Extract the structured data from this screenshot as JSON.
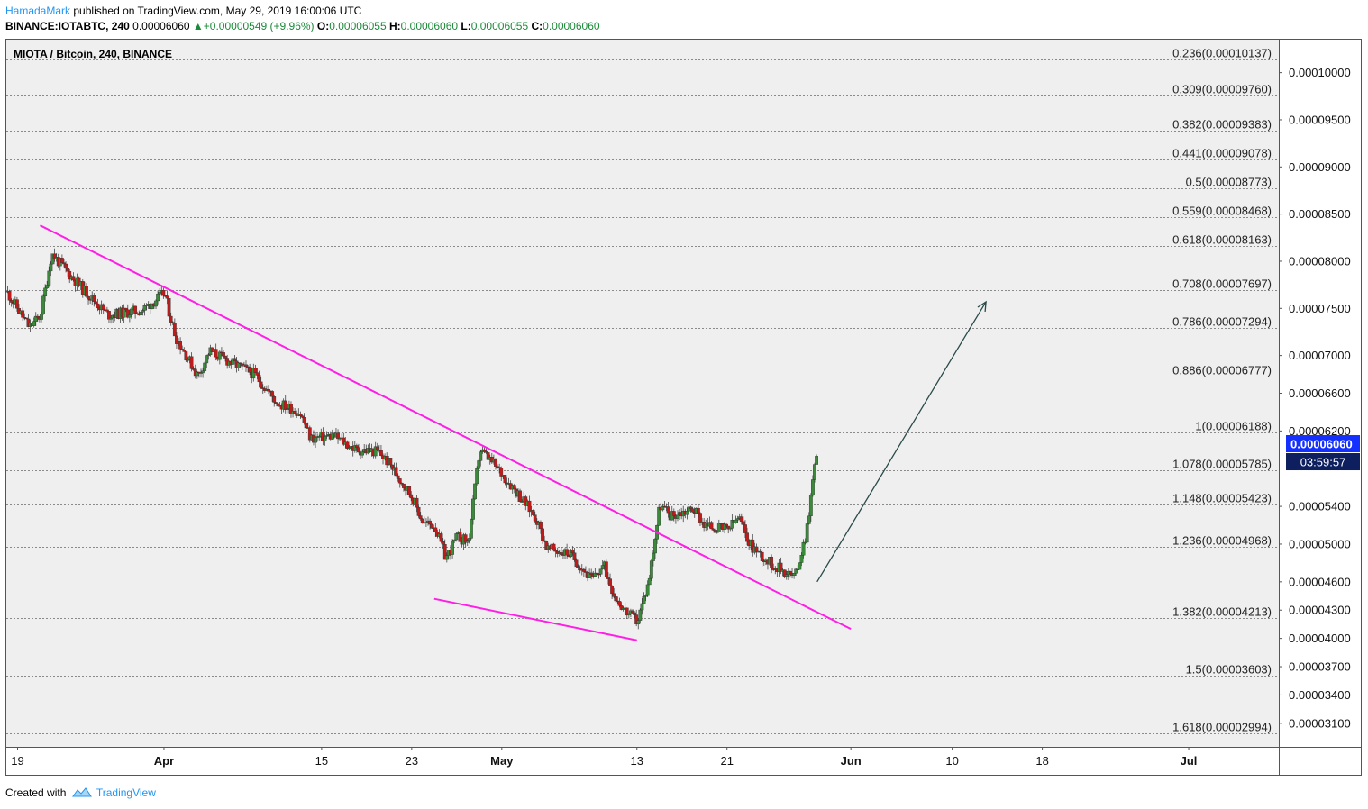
{
  "header": {
    "author": "HamadaMark",
    "published_text": "published on TradingView.com, May 29, 2019 16:00:06 UTC",
    "symbol": "BINANCE:IOTABTC, 240",
    "last": "0.00006060",
    "change_arrow": "▲",
    "change": "+0.00000549 (+9.96%)",
    "o_label": "O:",
    "o_value": "0.00006055",
    "h_label": "H:",
    "h_value": "0.00006060",
    "l_label": "L:",
    "l_value": "0.00006055",
    "c_label": "C:",
    "c_value": "0.00006060"
  },
  "footer": {
    "created_with": "Created with",
    "brand": "TradingView"
  },
  "colors": {
    "up": "#3a8a3a",
    "down": "#c01a1a",
    "trendline": "#ff1ee6",
    "arrow": "#2a4a4a",
    "price_badge": "#1430ff",
    "timer_badge": "#0d1f5e",
    "plot_bg": "#efefef"
  },
  "chart_data": {
    "type": "candlestick",
    "title": "MIOTA / Bitcoin, 240, BINANCE",
    "interval_hours": 4,
    "x_tick_labels": [
      "19",
      "Apr",
      "15",
      "23",
      "May",
      "13",
      "21",
      "Jun",
      "10",
      "18",
      "Jul"
    ],
    "x_range": [
      "2019-03-18",
      "2019-07-09"
    ],
    "y_range": [
      2.85e-05,
      0.0001035
    ],
    "y_tick_labels": [
      "0.00010000",
      "0.00009500",
      "0.00009000",
      "0.00008500",
      "0.00008000",
      "0.00007500",
      "0.00007000",
      "0.00006600",
      "0.00006200",
      "0.00005400",
      "0.00005000",
      "0.00004600",
      "0.00004300",
      "0.00004000",
      "0.00003700",
      "0.00003400",
      "0.00003100"
    ],
    "fib_levels": [
      {
        "label": "0.236(0.00010137)",
        "price": 0.00010137
      },
      {
        "label": "0.309(0.00009760)",
        "price": 9.76e-05
      },
      {
        "label": "0.382(0.00009383)",
        "price": 9.383e-05
      },
      {
        "label": "0.441(0.00009078)",
        "price": 9.078e-05
      },
      {
        "label": "0.5(0.00008773)",
        "price": 8.773e-05
      },
      {
        "label": "0.559(0.00008468)",
        "price": 8.468e-05
      },
      {
        "label": "0.618(0.00008163)",
        "price": 8.163e-05
      },
      {
        "label": "0.708(0.00007697)",
        "price": 7.697e-05
      },
      {
        "label": "0.786(0.00007294)",
        "price": 7.294e-05
      },
      {
        "label": "0.886(0.00006777)",
        "price": 6.777e-05
      },
      {
        "label": "1(0.00006188)",
        "price": 6.188e-05
      },
      {
        "label": "1.078(0.00005785)",
        "price": 5.785e-05
      },
      {
        "label": "1.148(0.00005423)",
        "price": 5.423e-05
      },
      {
        "label": "1.236(0.00004968)",
        "price": 4.968e-05
      },
      {
        "label": "1.382(0.00004213)",
        "price": 4.213e-05
      },
      {
        "label": "1.5(0.00003603)",
        "price": 3.603e-05
      },
      {
        "label": "1.618(0.00002994)",
        "price": 2.994e-05
      }
    ],
    "last_price": "0.00006060",
    "countdown": "03:59:57",
    "price_path": [
      {
        "t": "2019-03-18",
        "p": 7.68e-05
      },
      {
        "t": "2019-03-20",
        "p": 7.3e-05
      },
      {
        "t": "2019-03-21",
        "p": 7.42e-05
      },
      {
        "t": "2019-03-22",
        "p": 8.08e-05
      },
      {
        "t": "2019-03-24",
        "p": 7.8e-05
      },
      {
        "t": "2019-03-27",
        "p": 7.43e-05
      },
      {
        "t": "2019-03-30",
        "p": 7.48e-05
      },
      {
        "t": "2019-04-01",
        "p": 7.66e-05
      },
      {
        "t": "2019-04-02",
        "p": 7.2e-05
      },
      {
        "t": "2019-04-04",
        "p": 6.78e-05
      },
      {
        "t": "2019-04-05",
        "p": 7.05e-05
      },
      {
        "t": "2019-04-07",
        "p": 6.92e-05
      },
      {
        "t": "2019-04-09",
        "p": 6.8e-05
      },
      {
        "t": "2019-04-11",
        "p": 6.5e-05
      },
      {
        "t": "2019-04-13",
        "p": 6.4e-05
      },
      {
        "t": "2019-04-14",
        "p": 6.12e-05
      },
      {
        "t": "2019-04-16",
        "p": 6.15e-05
      },
      {
        "t": "2019-04-18",
        "p": 6e-05
      },
      {
        "t": "2019-04-20",
        "p": 5.98e-05
      },
      {
        "t": "2019-04-21",
        "p": 5.85e-05
      },
      {
        "t": "2019-04-23",
        "p": 5.5e-05
      },
      {
        "t": "2019-04-24",
        "p": 5.22e-05
      },
      {
        "t": "2019-04-25",
        "p": 5.2e-05
      },
      {
        "t": "2019-04-26",
        "p": 4.85e-05
      },
      {
        "t": "2019-04-27",
        "p": 5.08e-05
      },
      {
        "t": "2019-04-28",
        "p": 5.02e-05
      },
      {
        "t": "2019-04-29",
        "p": 6e-05
      },
      {
        "t": "2019-04-30",
        "p": 5.88e-05
      },
      {
        "t": "2019-05-02",
        "p": 5.6e-05
      },
      {
        "t": "2019-05-04",
        "p": 5.28e-05
      },
      {
        "t": "2019-05-05",
        "p": 4.95e-05
      },
      {
        "t": "2019-05-07",
        "p": 4.9e-05
      },
      {
        "t": "2019-05-09",
        "p": 4.62e-05
      },
      {
        "t": "2019-05-10",
        "p": 4.78e-05
      },
      {
        "t": "2019-05-11",
        "p": 4.45e-05
      },
      {
        "t": "2019-05-12",
        "p": 4.28e-05
      },
      {
        "t": "2019-05-13",
        "p": 4.18e-05
      },
      {
        "t": "2019-05-14",
        "p": 4.6e-05
      },
      {
        "t": "2019-05-15",
        "p": 5.42e-05
      },
      {
        "t": "2019-05-16",
        "p": 5.3e-05
      },
      {
        "t": "2019-05-18",
        "p": 5.38e-05
      },
      {
        "t": "2019-05-19",
        "p": 5.2e-05
      },
      {
        "t": "2019-05-21",
        "p": 5.15e-05
      },
      {
        "t": "2019-05-22",
        "p": 5.28e-05
      },
      {
        "t": "2019-05-23",
        "p": 5e-05
      },
      {
        "t": "2019-05-24",
        "p": 4.88e-05
      },
      {
        "t": "2019-05-25",
        "p": 4.78e-05
      },
      {
        "t": "2019-05-26",
        "p": 4.72e-05
      },
      {
        "t": "2019-05-27",
        "p": 4.65e-05
      },
      {
        "t": "2019-05-28",
        "p": 5.12e-05
      },
      {
        "t": "2019-05-29",
        "p": 6.06e-05
      }
    ],
    "drawings": [
      {
        "type": "trendline",
        "from": {
          "t": "2019-03-21",
          "p": 8.38e-05
        },
        "to": {
          "t": "2019-06-01",
          "p": 4.1e-05
        }
      },
      {
        "type": "trendline",
        "from": {
          "t": "2019-04-25",
          "p": 4.42e-05
        },
        "to": {
          "t": "2019-05-13",
          "p": 3.98e-05
        }
      },
      {
        "type": "arrow",
        "from": {
          "t": "2019-05-29",
          "p": 4.6e-05
        },
        "to": {
          "t": "2019-06-13",
          "p": 7.57e-05
        }
      }
    ]
  }
}
